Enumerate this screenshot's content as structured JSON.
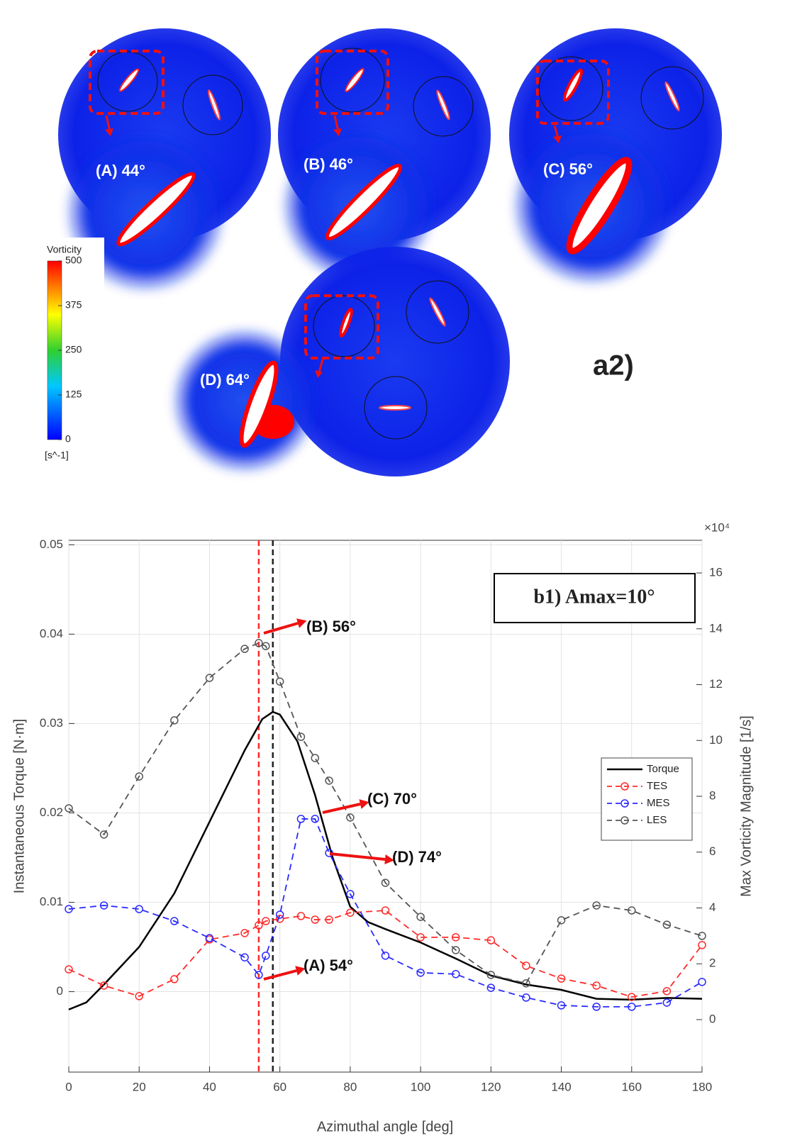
{
  "contour_figure": {
    "panel_label": "a2)",
    "snapshots": [
      "(A) 44°",
      "(B) 46°",
      "(C) 56°",
      "(D) 64°"
    ],
    "colorbar": {
      "title": "Vorticity",
      "unit": "[s^-1]",
      "lim": [
        0,
        500
      ],
      "ticks": [
        0,
        125,
        250,
        375,
        500
      ]
    }
  },
  "chart_data": {
    "type": "line",
    "title": "b1) Amax=10°",
    "xlabel": "Azimuthal angle [deg]",
    "ylabel": "Instantaneous Torque [N·m]",
    "y2label": "Max Vorticity Magnitude [1/s]",
    "y2_multiplier": "×10⁴",
    "xlim": [
      0,
      180
    ],
    "xticks": [
      0,
      20,
      40,
      60,
      80,
      100,
      120,
      140,
      160,
      180
    ],
    "ylim": [
      -0.009,
      0.0505
    ],
    "yticks": [
      0,
      0.01,
      0.02,
      0.03,
      0.04,
      0.05
    ],
    "y2lim": [
      -1.88,
      17.17
    ],
    "y2ticks": [
      0,
      2,
      4,
      6,
      8,
      10,
      12,
      14,
      16
    ],
    "grid": true,
    "legend": "right",
    "vlines": [
      {
        "x": 54,
        "color": "#ff2a2a"
      },
      {
        "x": 58,
        "color": "#222222"
      }
    ],
    "annotations": [
      {
        "text": "(B) 56°"
      },
      {
        "text": "(C) 70°"
      },
      {
        "text": "(D) 74°"
      },
      {
        "text": "(A) 54°"
      }
    ],
    "series": [
      {
        "name": "Torque",
        "color": "#000000",
        "line_style": "solid",
        "marker": "none",
        "x": [
          0,
          5,
          10,
          20,
          30,
          40,
          50,
          55,
          58,
          60,
          65,
          70,
          75,
          80,
          85,
          90,
          100,
          110,
          120,
          130,
          135,
          140,
          150,
          160,
          170,
          180
        ],
        "values": [
          -0.002,
          -0.0012,
          0.0008,
          0.005,
          0.011,
          0.019,
          0.027,
          0.0305,
          0.0313,
          0.031,
          0.028,
          0.022,
          0.015,
          0.0095,
          0.0078,
          0.007,
          0.0055,
          0.0037,
          0.0018,
          0.0008,
          0.0005,
          0.0002,
          -0.0008,
          -0.0009,
          -0.0007,
          -0.0008
        ]
      },
      {
        "name": "TES",
        "color": "#ff2a2a",
        "line_style": "dashed",
        "marker": "circle",
        "axis": "y2",
        "x": [
          0,
          10,
          20,
          30,
          40,
          50,
          54,
          56,
          60,
          66,
          70,
          74,
          80,
          90,
          100,
          110,
          120,
          130,
          140,
          150,
          160,
          170,
          180
        ],
        "values": [
          1.8,
          1.22,
          0.84,
          1.45,
          2.87,
          3.1,
          3.38,
          3.53,
          3.61,
          3.71,
          3.58,
          3.58,
          3.83,
          3.91,
          2.95,
          2.95,
          2.84,
          1.93,
          1.47,
          1.22,
          0.81,
          1.02,
          2.67
        ]
      },
      {
        "name": "MES",
        "color": "#2a2aff",
        "line_style": "dashed",
        "marker": "circle",
        "axis": "y2",
        "x": [
          0,
          10,
          20,
          30,
          40,
          50,
          54,
          56,
          60,
          66,
          70,
          74,
          80,
          90,
          100,
          110,
          120,
          130,
          140,
          150,
          160,
          170,
          180
        ],
        "values": [
          3.96,
          4.09,
          3.96,
          3.53,
          2.92,
          2.23,
          1.6,
          2.29,
          3.76,
          7.19,
          7.19,
          5.97,
          4.5,
          2.29,
          1.68,
          1.63,
          1.14,
          0.79,
          0.51,
          0.46,
          0.46,
          0.61,
          1.35
        ]
      },
      {
        "name": "LES",
        "color": "#555555",
        "line_style": "dashed",
        "marker": "circle",
        "axis": "y2",
        "x": [
          0,
          10,
          20,
          30,
          40,
          50,
          54,
          56,
          60,
          66,
          70,
          74,
          80,
          90,
          100,
          110,
          120,
          130,
          140,
          150,
          160,
          170,
          180
        ],
        "values": [
          7.57,
          6.63,
          8.71,
          10.72,
          12.24,
          13.28,
          13.49,
          13.38,
          12.11,
          10.13,
          9.37,
          8.56,
          7.24,
          4.9,
          3.68,
          2.49,
          1.6,
          1.3,
          3.56,
          4.09,
          3.91,
          3.4,
          3.0
        ]
      }
    ]
  }
}
